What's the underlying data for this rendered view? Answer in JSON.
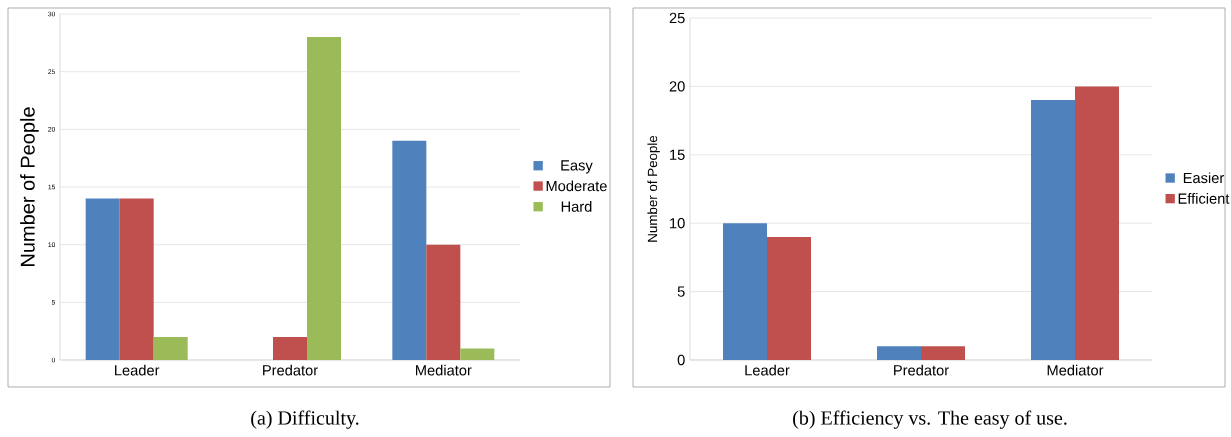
{
  "chart_data": [
    {
      "type": "bar",
      "categories": [
        "Leader",
        "Predator",
        "Mediator"
      ],
      "ylabel": "Number of People",
      "ylim": [
        0,
        30
      ],
      "yticks": [
        0,
        5,
        10,
        15,
        20,
        25,
        30
      ],
      "grid": "y",
      "legend": "right",
      "annotations": [
        "(a) Difficulty."
      ],
      "series": [
        {
          "name": "Easy",
          "color": "#4f81bd",
          "values": [
            14,
            0,
            19
          ]
        },
        {
          "name": "Moderate",
          "color": "#c0504d",
          "values": [
            14,
            2,
            10
          ]
        },
        {
          "name": "Hard",
          "color": "#9bbb59",
          "values": [
            2,
            28,
            1
          ]
        }
      ]
    },
    {
      "type": "bar",
      "categories": [
        "Leader",
        "Predator",
        "Mediator"
      ],
      "ylabel": "Number of People",
      "ylim": [
        0,
        25
      ],
      "yticks": [
        0,
        5,
        10,
        15,
        20,
        25
      ],
      "grid": "y",
      "legend": "right",
      "annotations": [
        "(b) Efficiency vs. The easy of use."
      ],
      "series": [
        {
          "name": "Easier",
          "color": "#4f81bd",
          "values": [
            10,
            1,
            19
          ]
        },
        {
          "name": "Efficient",
          "color": "#c0504d",
          "values": [
            9,
            1,
            20
          ]
        }
      ]
    }
  ]
}
